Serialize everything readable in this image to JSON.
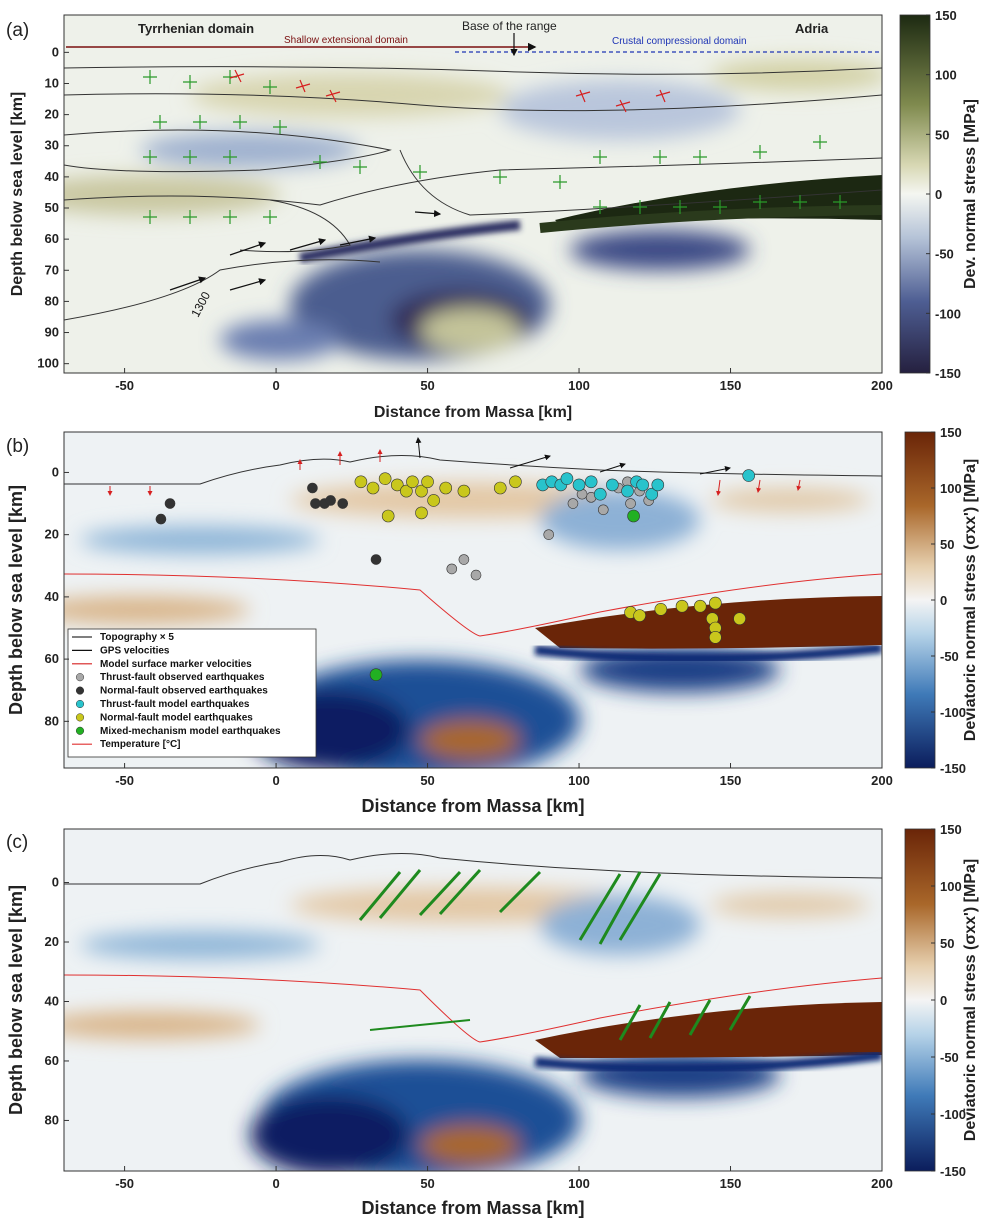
{
  "chart_data": [
    {
      "panel_label": "(a)",
      "type": "heatmap",
      "xlabel": "Distance from Massa [km]",
      "ylabel": "Depth below sea level [km]",
      "xlim": [
        -70,
        200
      ],
      "ylim": [
        103,
        -12
      ],
      "xticks": [
        -50,
        0,
        50,
        100,
        150,
        200
      ],
      "yticks": [
        0,
        10,
        20,
        30,
        40,
        50,
        60,
        70,
        80,
        90,
        100
      ],
      "colorbar": {
        "label": "Dev. normal stress [MPa]",
        "ticks": [
          150,
          100,
          50,
          0,
          -50,
          -100,
          -150
        ],
        "range": [
          -150,
          150
        ],
        "colormap": "navy-white-olive"
      },
      "annotations": {
        "tyrrhenian": "Tyrrhenian domain",
        "adria": "Adria",
        "base_range": "Base of the range",
        "shallow": "Shallow extensional domain",
        "crustal": "Crustal compressional domain",
        "isotherm": "1300"
      },
      "grid": false
    },
    {
      "panel_label": "(b)",
      "type": "heatmap",
      "xlabel": "Distance from Massa [km]",
      "ylabel": "Depth below sea level [km]",
      "xlim": [
        -70,
        200
      ],
      "ylim": [
        95,
        -13
      ],
      "xticks": [
        -50,
        0,
        50,
        100,
        150,
        200
      ],
      "yticks": [
        0,
        20,
        40,
        60,
        80
      ],
      "colorbar": {
        "label": "Deviatoric normal stress (σxx') [MPa]",
        "ticks": [
          150,
          100,
          50,
          0,
          -50,
          -100,
          -150
        ],
        "range": [
          -150,
          150
        ],
        "colormap": "navy-white-brown"
      },
      "legend": {
        "placement": "bottom-left",
        "items": [
          {
            "label": "Topography × 5",
            "color": "#333333",
            "style": "line"
          },
          {
            "label": "GPS velocities",
            "color": "#111111",
            "style": "arrow"
          },
          {
            "label": "Model surface marker velocities",
            "color": "#d62020",
            "style": "arrow"
          },
          {
            "label": "Thrust-fault observed earthquakes",
            "color": "#a8a8a8",
            "style": "dot"
          },
          {
            "label": "Normal-fault observed earthquakes",
            "color": "#333333",
            "style": "dot"
          },
          {
            "label": "Thrust-fault model earthquakes",
            "color": "#28c3cc",
            "style": "dot"
          },
          {
            "label": "Normal-fault model earthquakes",
            "color": "#c9c71c",
            "style": "dot"
          },
          {
            "label": "Mixed-mechanism model earthquakes",
            "color": "#22b022",
            "style": "dot"
          },
          {
            "label": "Temperature [°C]",
            "color": "#e03030",
            "style": "line"
          }
        ]
      },
      "series": [
        {
          "name": "Normal-fault observed earthquakes",
          "color": "#333333",
          "points": [
            [
              -38,
              15
            ],
            [
              -35,
              10
            ],
            [
              12,
              5
            ],
            [
              13,
              10
            ],
            [
              16,
              10
            ],
            [
              18,
              9
            ],
            [
              22,
              10
            ],
            [
              33,
              28
            ]
          ]
        },
        {
          "name": "Thrust-fault observed earthquakes",
          "color": "#a8a8a8",
          "points": [
            [
              58,
              31
            ],
            [
              62,
              28
            ],
            [
              66,
              33
            ],
            [
              90,
              20
            ],
            [
              104,
              8
            ],
            [
              108,
              12
            ],
            [
              113,
              5
            ],
            [
              117,
              10
            ],
            [
              120,
              6
            ],
            [
              123,
              9
            ],
            [
              116,
              3
            ],
            [
              98,
              10
            ],
            [
              101,
              7
            ]
          ]
        },
        {
          "name": "Normal-fault model earthquakes",
          "color": "#c9c71c",
          "points": [
            [
              28,
              3
            ],
            [
              32,
              5
            ],
            [
              36,
              2
            ],
            [
              40,
              4
            ],
            [
              43,
              6
            ],
            [
              45,
              3
            ],
            [
              48,
              6
            ],
            [
              50,
              3
            ],
            [
              52,
              9
            ],
            [
              37,
              14
            ],
            [
              48,
              13
            ],
            [
              56,
              5
            ],
            [
              62,
              6
            ],
            [
              74,
              5
            ],
            [
              79,
              3
            ],
            [
              117,
              45
            ],
            [
              120,
              46
            ],
            [
              127,
              44
            ],
            [
              134,
              43
            ],
            [
              140,
              43
            ],
            [
              145,
              42
            ],
            [
              144,
              47
            ],
            [
              145,
              50
            ],
            [
              145,
              53
            ],
            [
              153,
              47
            ]
          ]
        },
        {
          "name": "Thrust-fault model earthquakes",
          "color": "#28c3cc",
          "points": [
            [
              88,
              4
            ],
            [
              91,
              3
            ],
            [
              94,
              4
            ],
            [
              96,
              2
            ],
            [
              100,
              4
            ],
            [
              104,
              3
            ],
            [
              107,
              7
            ],
            [
              111,
              4
            ],
            [
              116,
              6
            ],
            [
              119,
              3
            ],
            [
              121,
              4
            ],
            [
              124,
              7
            ],
            [
              126,
              4
            ],
            [
              156,
              1
            ]
          ]
        },
        {
          "name": "Mixed-mechanism model earthquakes",
          "color": "#22b022",
          "points": [
            [
              33,
              65
            ],
            [
              118,
              14
            ]
          ]
        }
      ],
      "grid": false
    },
    {
      "panel_label": "(c)",
      "type": "heatmap",
      "xlabel": "Distance from Massa [km]",
      "ylabel": "Depth below sea level [km]",
      "xlim": [
        -70,
        200
      ],
      "ylim": [
        97,
        -18
      ],
      "xticks": [
        -50,
        0,
        50,
        100,
        150,
        200
      ],
      "yticks": [
        0,
        20,
        40,
        60,
        80
      ],
      "colorbar": {
        "label": "Deviatoric normal stress (σxx') [MPa]",
        "ticks": [
          150,
          100,
          50,
          0,
          -50,
          -100,
          -150
        ],
        "range": [
          -150,
          150
        ],
        "colormap": "navy-white-brown"
      },
      "grid": false
    }
  ],
  "colors": {
    "navy": "#1b2a6b",
    "brown": "#6a2a08",
    "olive": "#1c2812",
    "red": "#d62020",
    "green": "#1e8a1e"
  }
}
